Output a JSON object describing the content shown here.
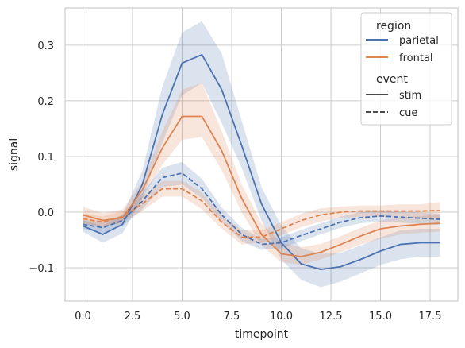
{
  "chart_data": {
    "type": "line",
    "title": "",
    "xlabel": "timepoint",
    "ylabel": "signal",
    "xlim": [
      -0.9,
      18.9
    ],
    "ylim": [
      -0.16,
      0.367
    ],
    "x_ticks": [
      0.0,
      2.5,
      5.0,
      7.5,
      10.0,
      12.5,
      15.0,
      17.5
    ],
    "x_tick_labels": [
      "0.0",
      "2.5",
      "5.0",
      "7.5",
      "10.0",
      "12.5",
      "15.0",
      "17.5"
    ],
    "y_ticks": [
      -0.1,
      0.0,
      0.1,
      0.2,
      0.3
    ],
    "y_tick_labels": [
      "−0.1",
      "0.0",
      "0.1",
      "0.2",
      "0.3"
    ],
    "grid": true,
    "legend": {
      "placement": "top-right",
      "hue_title": "region",
      "style_title": "event",
      "hue_entries": [
        {
          "label": "parietal",
          "color": "#4c72b0"
        },
        {
          "label": "frontal",
          "color": "#dd8452"
        }
      ],
      "style_entries": [
        {
          "label": "stim",
          "dash": "solid"
        },
        {
          "label": "cue",
          "dash": "dashed"
        }
      ]
    },
    "x": [
      0,
      1,
      2,
      3,
      4,
      5,
      6,
      7,
      8,
      9,
      10,
      11,
      12,
      13,
      14,
      15,
      16,
      17,
      18
    ],
    "series": [
      {
        "region": "parietal",
        "event": "stim",
        "color": "#4c72b0",
        "dash": "solid",
        "values": [
          -0.025,
          -0.04,
          -0.022,
          0.05,
          0.175,
          0.268,
          0.283,
          0.22,
          0.12,
          0.015,
          -0.055,
          -0.093,
          -0.103,
          -0.098,
          -0.085,
          -0.07,
          -0.058,
          -0.055,
          -0.055
        ],
        "ci_low": [
          -0.035,
          -0.055,
          -0.038,
          0.025,
          0.125,
          0.21,
          0.232,
          0.16,
          0.08,
          -0.015,
          -0.085,
          -0.122,
          -0.135,
          -0.125,
          -0.11,
          -0.095,
          -0.085,
          -0.08,
          -0.08
        ],
        "ci_high": [
          -0.015,
          -0.025,
          -0.005,
          0.075,
          0.225,
          0.323,
          0.343,
          0.285,
          0.165,
          0.045,
          -0.025,
          -0.065,
          -0.075,
          -0.073,
          -0.06,
          -0.045,
          -0.033,
          -0.03,
          -0.03
        ]
      },
      {
        "region": "frontal",
        "event": "stim",
        "color": "#dd8452",
        "dash": "solid",
        "values": [
          -0.005,
          -0.015,
          -0.01,
          0.04,
          0.115,
          0.172,
          0.172,
          0.11,
          0.025,
          -0.04,
          -0.075,
          -0.08,
          -0.072,
          -0.058,
          -0.043,
          -0.03,
          -0.025,
          -0.022,
          -0.02
        ],
        "ci_low": [
          -0.02,
          -0.025,
          -0.02,
          0.025,
          0.085,
          0.13,
          0.135,
          0.075,
          0.0,
          -0.06,
          -0.09,
          -0.095,
          -0.085,
          -0.072,
          -0.058,
          -0.048,
          -0.04,
          -0.037,
          -0.035
        ],
        "ci_high": [
          0.01,
          -0.002,
          0.005,
          0.055,
          0.145,
          0.22,
          0.232,
          0.145,
          0.05,
          -0.02,
          -0.055,
          -0.063,
          -0.057,
          -0.043,
          -0.028,
          -0.015,
          -0.01,
          -0.007,
          -0.005
        ]
      },
      {
        "region": "parietal",
        "event": "cue",
        "color": "#4c72b0",
        "dash": "dashed",
        "values": [
          -0.022,
          -0.028,
          -0.015,
          0.02,
          0.062,
          0.07,
          0.042,
          -0.005,
          -0.04,
          -0.058,
          -0.055,
          -0.042,
          -0.03,
          -0.018,
          -0.01,
          -0.007,
          -0.009,
          -0.011,
          -0.013
        ],
        "ci_low": [
          -0.03,
          -0.038,
          -0.025,
          0.005,
          0.045,
          0.05,
          0.025,
          -0.018,
          -0.052,
          -0.068,
          -0.065,
          -0.052,
          -0.04,
          -0.028,
          -0.02,
          -0.017,
          -0.019,
          -0.021,
          -0.023
        ],
        "ci_high": [
          -0.014,
          -0.018,
          -0.005,
          0.035,
          0.08,
          0.09,
          0.06,
          0.008,
          -0.028,
          -0.048,
          -0.045,
          -0.032,
          -0.02,
          -0.008,
          0.0,
          0.003,
          0.001,
          -0.001,
          -0.003
        ]
      },
      {
        "region": "frontal",
        "event": "cue",
        "color": "#dd8452",
        "dash": "dashed",
        "values": [
          -0.012,
          -0.018,
          -0.008,
          0.015,
          0.042,
          0.042,
          0.02,
          -0.018,
          -0.045,
          -0.045,
          -0.03,
          -0.015,
          -0.005,
          0.0,
          0.002,
          0.002,
          0.002,
          0.002,
          0.003
        ],
        "ci_low": [
          -0.022,
          -0.028,
          -0.018,
          0.002,
          0.028,
          0.028,
          0.005,
          -0.03,
          -0.058,
          -0.055,
          -0.042,
          -0.027,
          -0.017,
          -0.01,
          -0.008,
          -0.008,
          -0.01,
          -0.01,
          -0.012
        ],
        "ci_high": [
          -0.002,
          -0.008,
          0.002,
          0.028,
          0.056,
          0.056,
          0.035,
          -0.006,
          -0.032,
          -0.033,
          -0.018,
          -0.003,
          0.007,
          0.01,
          0.012,
          0.012,
          0.014,
          0.014,
          0.018
        ]
      }
    ]
  }
}
